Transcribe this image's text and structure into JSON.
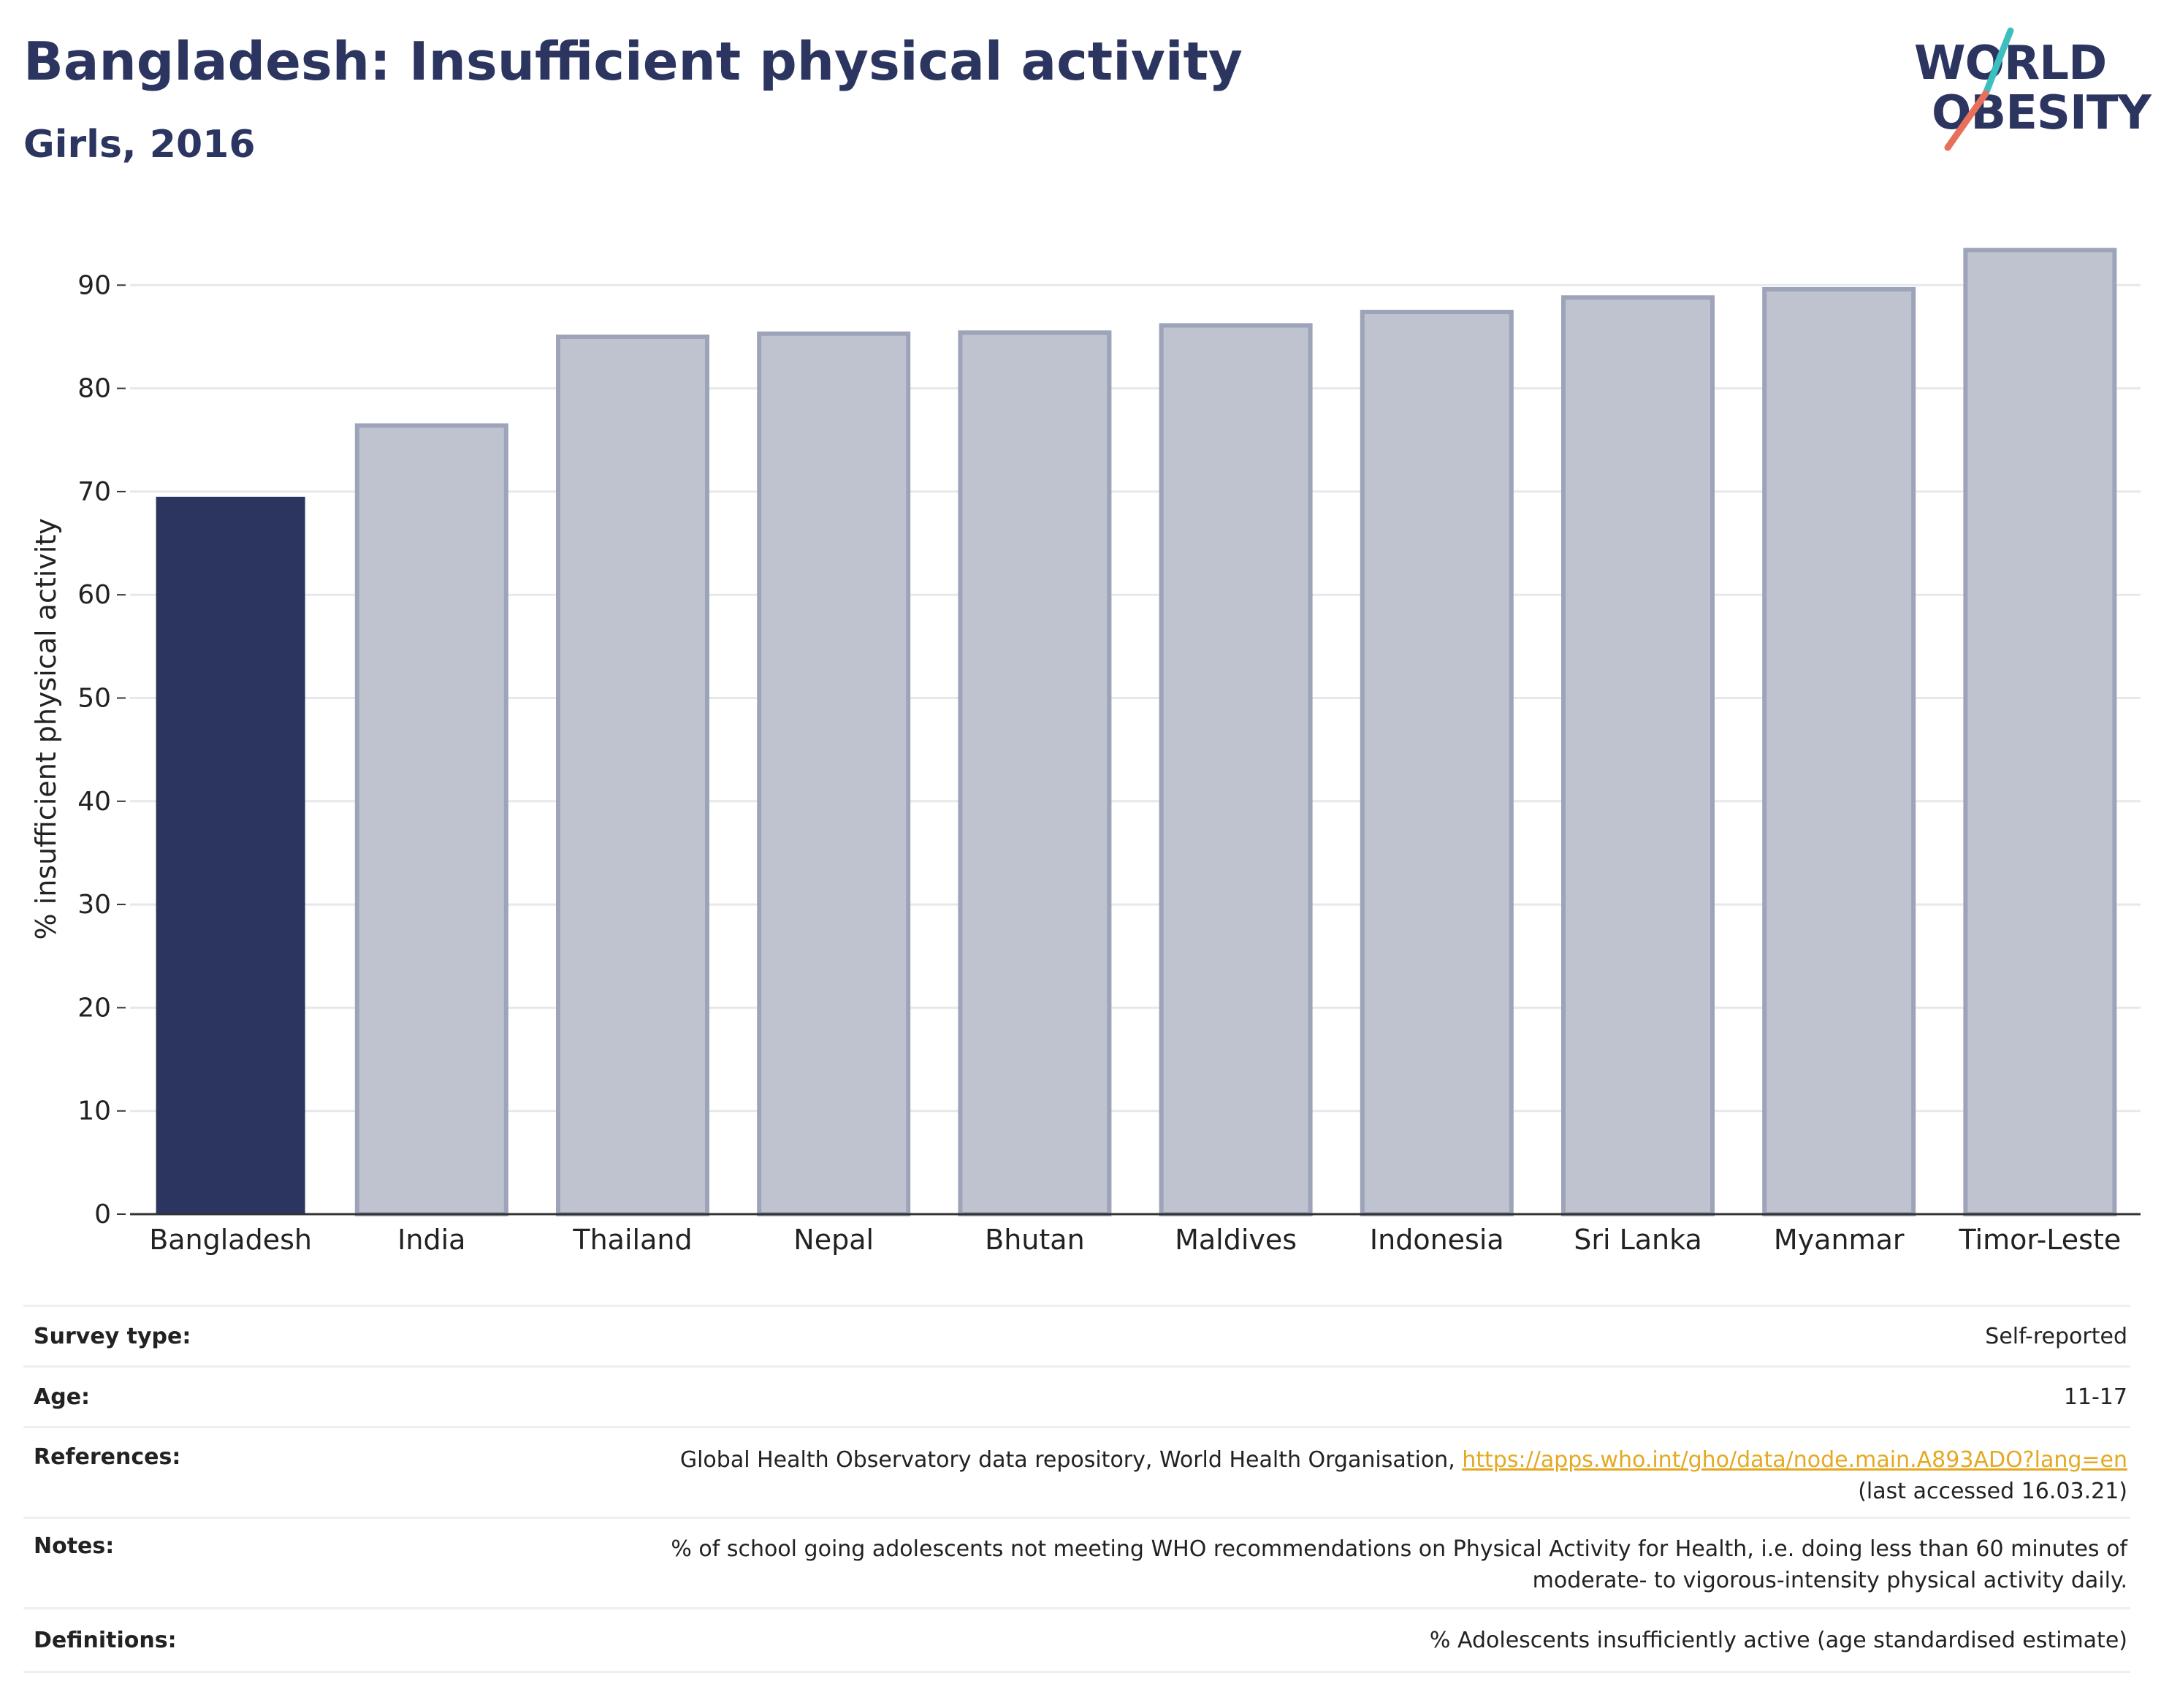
{
  "header": {
    "title": "Bangladesh: Insufficient physical activity",
    "subtitle": "Girls, 2016"
  },
  "logo": {
    "line1": "WORLD",
    "line2": "OBESITY",
    "colors": {
      "text": "#2b3560",
      "slash_top": "#3ebfbf",
      "slash_bottom": "#e8705a"
    }
  },
  "colors": {
    "highlight_bar": "#2b3560",
    "other_bar_fill": "#bfc3cf",
    "other_bar_stroke": "#9da3b8",
    "grid": "#e6e8ec",
    "link": "#e3a922"
  },
  "chart_data": {
    "type": "bar",
    "title": "",
    "xlabel": "",
    "ylabel": "% insufficient physical activity",
    "ylim": [
      0,
      95
    ],
    "yticks": [
      0,
      10,
      20,
      30,
      40,
      50,
      60,
      70,
      80,
      90
    ],
    "grid": true,
    "highlight": "Bangladesh",
    "categories": [
      "Bangladesh",
      "India",
      "Thailand",
      "Nepal",
      "Bhutan",
      "Maldives",
      "Indonesia",
      "Sri Lanka",
      "Myanmar",
      "Timor-Leste"
    ],
    "values": [
      69.5,
      76.4,
      85.0,
      85.3,
      85.4,
      86.1,
      87.4,
      88.8,
      89.6,
      93.4
    ]
  },
  "info": {
    "survey_type": {
      "label": "Survey type:",
      "value": "Self-reported"
    },
    "age": {
      "label": "Age:",
      "value": "11-17"
    },
    "references": {
      "label": "References:",
      "value_prefix": "Global Health Observatory data repository, World Health Organisation, ",
      "link": "https://apps.who.int/gho/data/node.main.A893ADO?lang=en",
      "value_suffix": "(last accessed 16.03.21)"
    },
    "notes": {
      "label": "Notes:",
      "line1": "% of school going adolescents not meeting WHO recommendations on Physical Activity for Health, i.e. doing less than 60 minutes of",
      "line2": "moderate- to vigorous-intensity physical activity daily."
    },
    "definitions": {
      "label": "Definitions:",
      "value": "% Adolescents insufficiently active (age standardised estimate)"
    }
  }
}
